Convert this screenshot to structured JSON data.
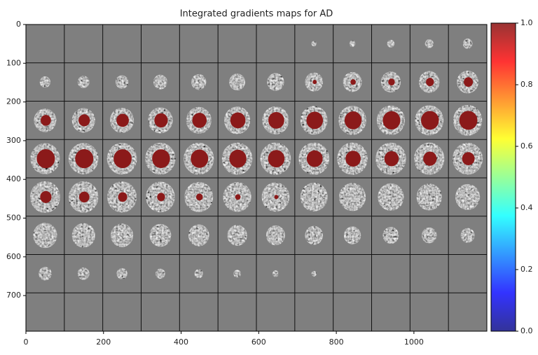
{
  "chart_data": {
    "type": "image",
    "title": "Integrated gradients maps for AD",
    "xlim": [
      0,
      1188
    ],
    "xticks": [
      0,
      200,
      400,
      600,
      800,
      1000
    ],
    "ylim": [
      792,
      0
    ],
    "yticks": [
      0,
      100,
      200,
      300,
      400,
      500,
      600,
      700
    ],
    "colorbar": {
      "colormap": "jet",
      "lim": [
        0,
        1
      ],
      "ticks": [
        {
          "value": 0,
          "label": "0.0"
        },
        {
          "value": 0.2,
          "label": "0.2"
        },
        {
          "value": 0.4,
          "label": "0.4"
        },
        {
          "value": 0.6,
          "label": "0.6"
        },
        {
          "value": 0.8,
          "label": "0.8"
        },
        {
          "value": 1,
          "label": "1.0"
        }
      ]
    }
  }
}
